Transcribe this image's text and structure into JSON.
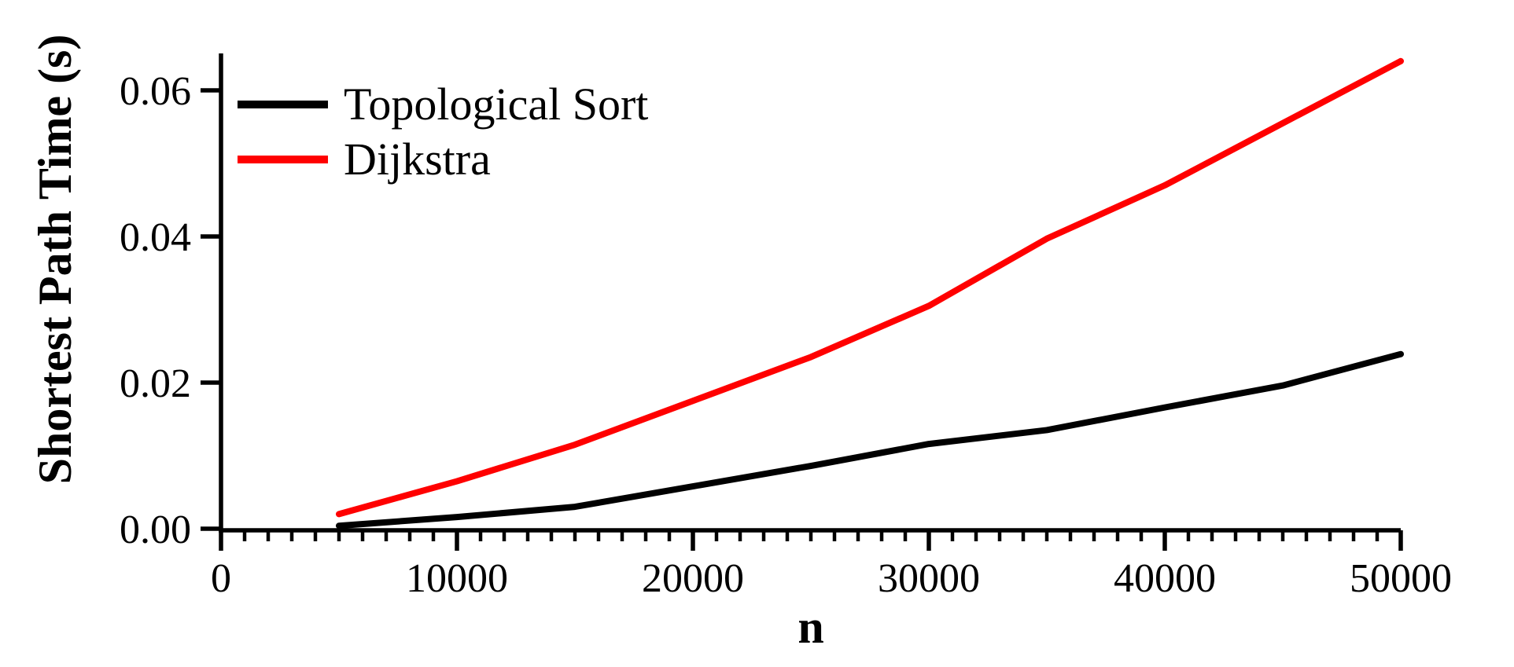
{
  "chart_data": {
    "type": "line",
    "title": "",
    "xlabel": "n",
    "ylabel": "Shortest Path Time (s)",
    "x": [
      5000,
      10000,
      15000,
      20000,
      25000,
      30000,
      35000,
      40000,
      45000,
      50000
    ],
    "series": [
      {
        "name": "Topological Sort",
        "color": "#000000",
        "values": [
          0.0004,
          0.0016,
          0.003,
          0.0058,
          0.0086,
          0.0116,
          0.0135,
          0.0166,
          0.0196,
          0.0239
        ]
      },
      {
        "name": "Dijkstra",
        "color": "#ff0000",
        "values": [
          0.002,
          0.0065,
          0.0115,
          0.0175,
          0.0235,
          0.0305,
          0.0397,
          0.047,
          0.0555,
          0.064
        ]
      }
    ],
    "xlim": [
      0,
      50000
    ],
    "ylim": [
      0,
      0.065
    ],
    "x_ticks": [
      0,
      10000,
      20000,
      30000,
      40000,
      50000
    ],
    "x_tick_labels": [
      "0",
      "10000",
      "20000",
      "30000",
      "40000",
      "50000"
    ],
    "x_minor_tick_step": 1000,
    "y_ticks": [
      0,
      0.02,
      0.04,
      0.06
    ],
    "y_tick_labels": [
      "0.00",
      "0.02",
      "0.04",
      "0.06"
    ],
    "grid": false,
    "legend_position": "top-left-inside"
  }
}
